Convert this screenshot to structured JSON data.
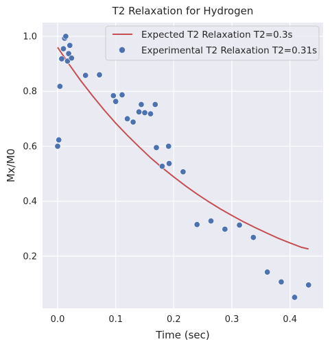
{
  "chart_data": {
    "type": "scatter",
    "title": "T2 Relaxation for Hydrogen",
    "xlabel": "Time (sec)",
    "ylabel": "Mx/M0",
    "xlim": [
      -0.026,
      0.457
    ],
    "ylim": [
      0.01,
      1.05
    ],
    "xticks": [
      0.0,
      0.1,
      0.2,
      0.3,
      0.4
    ],
    "xtick_labels": [
      "0.0",
      "0.1",
      "0.2",
      "0.3",
      "0.4"
    ],
    "yticks": [
      0.2,
      0.4,
      0.6,
      0.8,
      1.0
    ],
    "ytick_labels": [
      "0.2",
      "0.4",
      "0.6",
      "0.8",
      "1.0"
    ],
    "grid": true,
    "legend_position": "top-right",
    "colors": {
      "background": "#EAEAF2",
      "grid": "#FFFFFF",
      "line": "#C44E52",
      "points": "#4C72B0"
    },
    "series": [
      {
        "name": "Expected T2 Relaxation T2=0.3s",
        "kind": "line",
        "color": "#C44E52",
        "x": [
          0.0,
          0.02,
          0.04,
          0.06,
          0.08,
          0.1,
          0.12,
          0.14,
          0.16,
          0.18,
          0.2,
          0.22,
          0.24,
          0.26,
          0.28,
          0.3,
          0.32,
          0.34,
          0.36,
          0.38,
          0.4,
          0.42,
          0.432
        ],
        "y": [
          0.96,
          0.897,
          0.838,
          0.784,
          0.732,
          0.684,
          0.64,
          0.598,
          0.558,
          0.522,
          0.488,
          0.456,
          0.426,
          0.398,
          0.372,
          0.348,
          0.325,
          0.304,
          0.284,
          0.265,
          0.248,
          0.232,
          0.226
        ]
      },
      {
        "name": "Experimental T2 Relaxation T2=0.31s",
        "kind": "scatter",
        "color": "#4C72B0",
        "x": [
          0.0,
          0.002,
          0.004,
          0.007,
          0.01,
          0.012,
          0.014,
          0.017,
          0.019,
          0.021,
          0.024,
          0.048,
          0.072,
          0.096,
          0.1,
          0.111,
          0.12,
          0.13,
          0.14,
          0.144,
          0.15,
          0.16,
          0.168,
          0.17,
          0.18,
          0.191,
          0.192,
          0.216,
          0.24,
          0.264,
          0.288,
          0.313,
          0.337,
          0.361,
          0.385,
          0.408,
          0.432
        ],
        "y": [
          0.6,
          0.623,
          0.818,
          0.918,
          0.955,
          0.993,
          1.0,
          0.91,
          0.937,
          0.967,
          0.921,
          0.858,
          0.86,
          0.784,
          0.763,
          0.787,
          0.7,
          0.688,
          0.725,
          0.752,
          0.722,
          0.718,
          0.752,
          0.595,
          0.527,
          0.6,
          0.537,
          0.507,
          0.315,
          0.328,
          0.298,
          0.313,
          0.268,
          0.142,
          0.106,
          0.05,
          0.095
        ]
      }
    ]
  }
}
